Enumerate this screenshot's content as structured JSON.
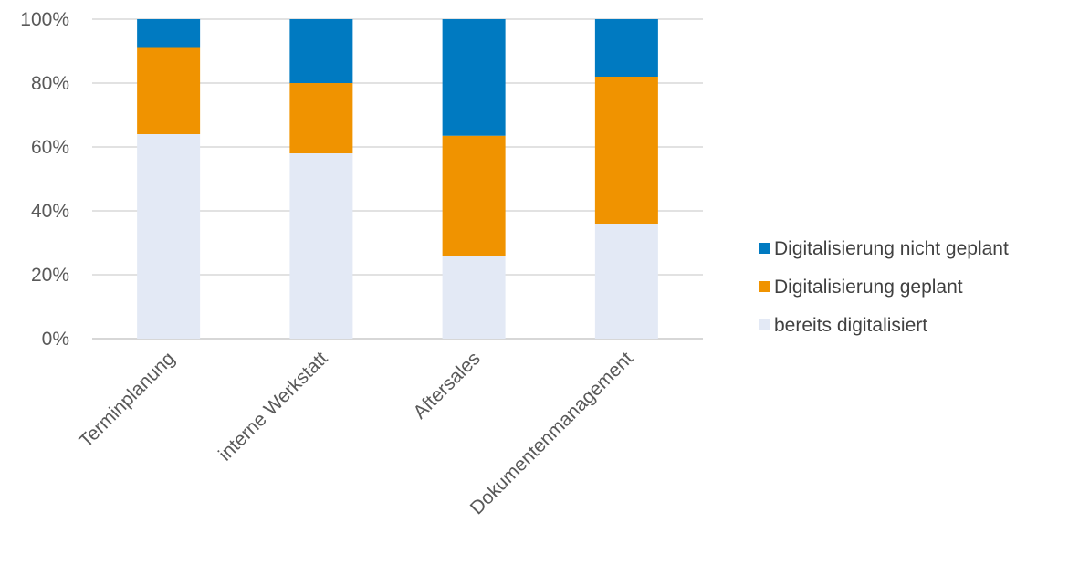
{
  "chart_data": {
    "type": "bar",
    "stacked": true,
    "categories": [
      "Terminplanung",
      "interne Werkstatt",
      "Aftersales",
      "Dokumentenmanagement"
    ],
    "series": [
      {
        "name": "bereits digitalisiert",
        "color": "#E3E9F5",
        "values": [
          64,
          58,
          26,
          36
        ]
      },
      {
        "name": "Digitalisierung geplant",
        "color": "#F09300",
        "values": [
          27,
          22,
          37.5,
          46
        ]
      },
      {
        "name": "Digitalisierung nicht geplant",
        "color": "#007AC1",
        "values": [
          9,
          20,
          36.5,
          18
        ]
      }
    ],
    "yticks": [
      "0%",
      "20%",
      "40%",
      "60%",
      "80%",
      "100%"
    ],
    "ylim": [
      0,
      100
    ],
    "grid": true,
    "legend": {
      "position": "right",
      "order": [
        "Digitalisierung nicht geplant",
        "Digitalisierung geplant",
        "bereits digitalisiert"
      ]
    }
  }
}
